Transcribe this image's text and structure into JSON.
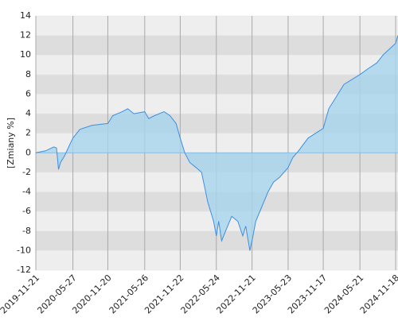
{
  "chart_data": {
    "type": "area",
    "y_label": "[Zmiany %]",
    "x": [
      "2019-11-21",
      "2020-01-10",
      "2020-02-20",
      "2020-03-05",
      "2020-03-15",
      "2020-03-25",
      "2020-04-15",
      "2020-05-10",
      "2020-05-27",
      "2020-07-01",
      "2020-09-01",
      "2020-11-20",
      "2020-12-15",
      "2021-02-01",
      "2021-03-01",
      "2021-04-01",
      "2021-05-26",
      "2021-06-15",
      "2021-07-15",
      "2021-09-01",
      "2021-10-01",
      "2021-11-01",
      "2021-11-22",
      "2021-12-15",
      "2022-01-10",
      "2022-02-10",
      "2022-03-10",
      "2022-04-10",
      "2022-05-10",
      "2022-05-24",
      "2022-06-05",
      "2022-06-20",
      "2022-07-10",
      "2022-08-10",
      "2022-09-10",
      "2022-10-05",
      "2022-10-20",
      "2022-11-10",
      "2022-11-21",
      "2022-12-10",
      "2023-01-10",
      "2023-02-10",
      "2023-03-10",
      "2023-04-10",
      "2023-05-23",
      "2023-06-15",
      "2023-07-15",
      "2023-09-01",
      "2023-11-17",
      "2023-12-15",
      "2024-01-15",
      "2024-03-01",
      "2024-05-21",
      "2024-07-01",
      "2024-08-15",
      "2024-09-15",
      "2024-11-18",
      "2024-11-30"
    ],
    "values": [
      0,
      0.2,
      0.6,
      0.5,
      -1.7,
      -1.0,
      -0.3,
      0.8,
      1.5,
      2.4,
      2.8,
      3.0,
      3.8,
      4.2,
      4.5,
      4.0,
      4.2,
      3.5,
      3.8,
      4.2,
      3.8,
      3.0,
      1.5,
      0,
      -1.0,
      -1.5,
      -2.0,
      -5.0,
      -7.0,
      -8.5,
      -7.0,
      -9.0,
      -8.0,
      -6.5,
      -7.0,
      -8.5,
      -7.5,
      -10.0,
      -9.0,
      -7.0,
      -5.5,
      -4.0,
      -3.0,
      -2.5,
      -1.5,
      -0.5,
      0.2,
      1.5,
      2.5,
      4.5,
      5.5,
      7.0,
      8.0,
      8.6,
      9.2,
      10.0,
      11.2,
      12.0
    ],
    "color": "#3d8fe0",
    "fill": "#a8d5ec",
    "xlim": [
      "2019-11-21",
      "2024-11-30"
    ],
    "xticks": [
      "2019-11-21",
      "2020-05-27",
      "2020-11-20",
      "2021-05-26",
      "2021-11-22",
      "2022-05-24",
      "2022-11-21",
      "2023-05-23",
      "2023-11-17",
      "2024-05-21",
      "2024-11-18"
    ],
    "ylim": [
      -12,
      14
    ],
    "yticks": [
      -12,
      -10,
      -8,
      -6,
      -4,
      -2,
      0,
      2,
      4,
      6,
      8,
      10,
      12,
      14
    ],
    "grid": true
  }
}
